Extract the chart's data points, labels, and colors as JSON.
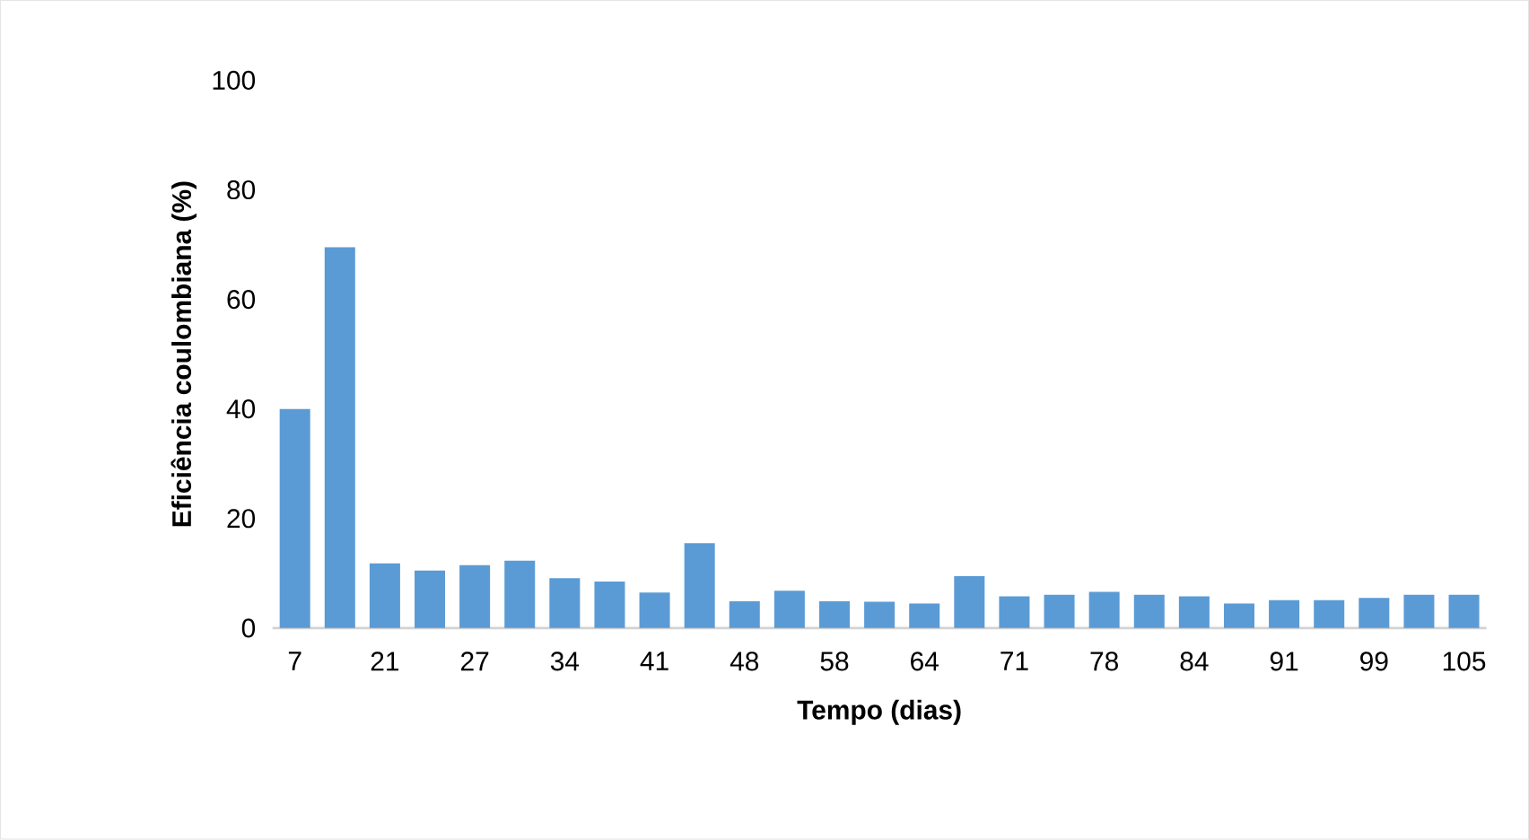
{
  "chart_data": {
    "type": "bar",
    "xlabel": "Tempo (dias)",
    "ylabel": "Eficiência coulombiana (%)",
    "categories": [
      "7",
      null,
      "21",
      null,
      "27",
      null,
      "34",
      null,
      "41",
      null,
      "48",
      null,
      "58",
      null,
      "64",
      null,
      "71",
      null,
      "78",
      null,
      "84",
      null,
      "91",
      null,
      "99",
      null,
      "105"
    ],
    "values": [
      40,
      69.5,
      11.8,
      10.5,
      11.5,
      12.3,
      9.1,
      8.5,
      6.5,
      15.5,
      4.9,
      6.8,
      4.9,
      4.8,
      4.5,
      9.5,
      5.8,
      6.1,
      6.6,
      6.1,
      5.8,
      4.5,
      5.1,
      5.1,
      5.5,
      6.1,
      6.1
    ],
    "color": "#5b9bd5",
    "ylim": [
      0,
      100
    ],
    "yticks": [
      0,
      20,
      40,
      60,
      80,
      100
    ]
  }
}
